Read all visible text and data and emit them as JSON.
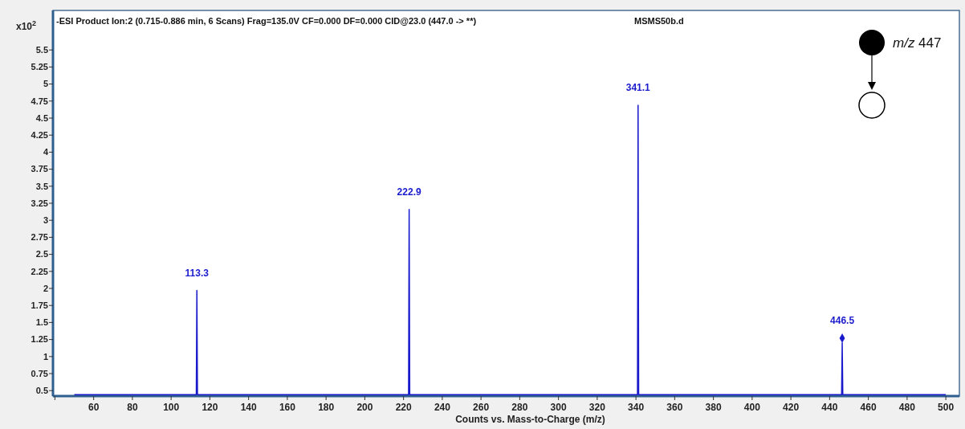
{
  "chart_data": {
    "type": "line",
    "title": "-ESI Product Ion:2 (0.715-0.886 min, 6 Scans) Frag=135.0V CF=0.000 DF=0.000 CID@23.0 (447.0 -> **)",
    "xlabel": "Counts vs. Mass-to-Charge (m/z)",
    "ylabel": "x10$^{2}$",
    "xlim": [
      39,
      507
    ],
    "ylim": [
      0.42,
      6.08
    ],
    "xticks": [
      {
        "value": 40,
        "label": null
      },
      60,
      80,
      100,
      120,
      140,
      160,
      180,
      200,
      220,
      240,
      260,
      280,
      300,
      320,
      340,
      360,
      380,
      400,
      420,
      440,
      460,
      480,
      500
    ],
    "yticks": [
      0.5,
      0.75,
      1,
      1.25,
      1.5,
      1.75,
      2,
      2.25,
      2.5,
      2.75,
      3,
      3.25,
      3.5,
      3.75,
      4,
      4.25,
      4.5,
      4.75,
      5,
      5.25,
      5.5
    ],
    "series": [
      {
        "color": "#1a1acd",
        "x": [
          50,
          113,
          113.3,
          113.6,
          222.6,
          222.9,
          223.2,
          340.8,
          341.1,
          341.4,
          446.2,
          446.5,
          446.8,
          500
        ],
        "values": [
          0.44,
          0.44,
          1.97,
          0.44,
          0.44,
          3.16,
          0.44,
          0.44,
          4.69,
          0.44,
          0.44,
          1.2,
          0.44,
          0.44
        ]
      },
      {
        "type": "scatter",
        "marker": "diamond",
        "color": "#1a1acd",
        "x": [
          446.5
        ],
        "values": [
          1.27
        ]
      }
    ],
    "annotations": [
      {
        "text": "113.3",
        "x": 113.3,
        "y": 1.97
      },
      {
        "text": "222.9",
        "x": 222.9,
        "y": 3.16
      },
      {
        "text": "341.1",
        "x": 341.1,
        "y": 4.69
      },
      {
        "text": "446.5",
        "x": 446.5,
        "y": 1.27
      },
      "MSMS50b.d",
      "m/z 447"
    ]
  }
}
